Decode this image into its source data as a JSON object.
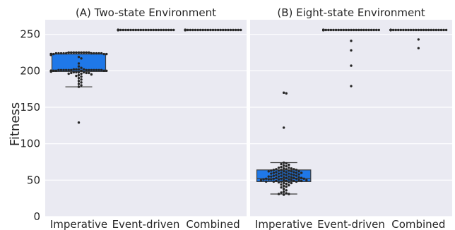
{
  "chart_data": [
    {
      "type": "box",
      "title": "(A) Two-state Environment",
      "ylabel": "Fitness",
      "categories": [
        "Imperative",
        "Event-driven",
        "Combined"
      ],
      "ylim": [
        0,
        270
      ],
      "yticks": [
        0,
        50,
        100,
        150,
        200,
        250
      ],
      "grid": true,
      "box_color": "#1f78e8",
      "point_color": "#262626",
      "boxes": [
        {
          "category": "Imperative",
          "whislo": 178,
          "q1": 199,
          "med": 201,
          "q3": 223,
          "whishi": 225,
          "fliers": [
            129
          ]
        },
        {
          "category": "Event-driven",
          "whislo": 256,
          "q1": 256,
          "med": 256,
          "q3": 256,
          "whishi": 256,
          "fliers": []
        },
        {
          "category": "Combined",
          "whislo": 256,
          "q1": 256,
          "med": 256,
          "q3": 256,
          "whishi": 256,
          "fliers": []
        }
      ],
      "swarm": [
        {
          "category": "Imperative",
          "values": [
            225,
            225,
            225,
            225,
            225,
            225,
            225,
            225,
            225,
            224,
            224,
            224,
            224,
            224,
            224,
            224,
            224,
            224,
            224,
            223,
            223,
            223,
            223,
            223,
            223,
            223,
            223,
            222,
            222,
            222,
            222,
            222,
            222,
            219,
            217,
            210,
            206,
            204,
            202,
            202,
            202,
            202,
            201,
            201,
            201,
            201,
            201,
            201,
            201,
            201,
            201,
            201,
            201,
            201,
            201,
            200,
            200,
            200,
            200,
            200,
            200,
            200,
            200,
            200,
            200,
            200,
            199,
            199,
            199,
            199,
            199,
            198,
            198,
            198,
            198,
            197,
            197,
            197,
            196,
            196,
            195,
            194,
            193,
            192,
            190,
            188,
            186,
            184,
            182,
            180,
            178,
            129
          ]
        },
        {
          "category": "Event-driven",
          "values": [
            256,
            256,
            256,
            256,
            256,
            256,
            256,
            256,
            256,
            256,
            256,
            256,
            256,
            256,
            256,
            256,
            256,
            256,
            256,
            256,
            256,
            256,
            256,
            256,
            256,
            256,
            256,
            256,
            256,
            256,
            256,
            256,
            256,
            256,
            256,
            256,
            256,
            256,
            256,
            256,
            256,
            256,
            256,
            256,
            256,
            256,
            256,
            256,
            256,
            256,
            256,
            256,
            256,
            256,
            256,
            256,
            256,
            256,
            256,
            256,
            256,
            256,
            256,
            256,
            256,
            256,
            256,
            256,
            256,
            256,
            256,
            256,
            256,
            256,
            256,
            256,
            256,
            256,
            256,
            256,
            256,
            256,
            256,
            256,
            256,
            256,
            256,
            256,
            256,
            256,
            256,
            256,
            256,
            256,
            256,
            256,
            256,
            256,
            256,
            256
          ]
        },
        {
          "category": "Combined",
          "values": [
            256,
            256,
            256,
            256,
            256,
            256,
            256,
            256,
            256,
            256,
            256,
            256,
            256,
            256,
            256,
            256,
            256,
            256,
            256,
            256,
            256,
            256,
            256,
            256,
            256,
            256,
            256,
            256,
            256,
            256,
            256,
            256,
            256,
            256,
            256,
            256,
            256,
            256,
            256,
            256,
            256,
            256,
            256,
            256,
            256,
            256,
            256,
            256,
            256,
            256,
            256,
            256,
            256,
            256,
            256,
            256,
            256,
            256,
            256,
            256,
            256,
            256,
            256,
            256,
            256,
            256,
            256,
            256,
            256,
            256,
            256,
            256,
            256,
            256,
            256,
            256,
            256,
            256,
            256,
            256,
            256,
            256,
            256,
            256,
            256,
            256,
            256,
            256,
            256,
            256,
            256,
            256,
            256,
            256,
            256,
            256,
            256,
            256,
            256,
            256
          ]
        }
      ]
    },
    {
      "type": "box",
      "title": "(B) Eight-state Environment",
      "ylabel": "",
      "categories": [
        "Imperative",
        "Event-driven",
        "Combined"
      ],
      "ylim": [
        0,
        270
      ],
      "yticks": [
        0,
        50,
        100,
        150,
        200,
        250
      ],
      "grid": true,
      "box_color": "#1f78e8",
      "point_color": "#262626",
      "boxes": [
        {
          "category": "Imperative",
          "whislo": 31,
          "q1": 48,
          "med": 52,
          "q3": 64,
          "whishi": 74,
          "fliers": [
            170,
            169,
            122
          ]
        },
        {
          "category": "Event-driven",
          "whislo": 256,
          "q1": 256,
          "med": 256,
          "q3": 256,
          "whishi": 256,
          "fliers": [
            241,
            228,
            207,
            179
          ]
        },
        {
          "category": "Combined",
          "whislo": 256,
          "q1": 256,
          "med": 256,
          "q3": 256,
          "whishi": 256,
          "fliers": [
            243,
            231
          ]
        }
      ],
      "swarm": [
        {
          "category": "Imperative",
          "values": [
            170,
            169,
            122,
            74,
            73,
            72,
            71,
            70,
            69,
            68,
            67,
            67,
            66,
            66,
            65,
            65,
            65,
            64,
            64,
            64,
            63,
            63,
            63,
            62,
            62,
            62,
            62,
            61,
            61,
            61,
            60,
            60,
            60,
            60,
            59,
            59,
            59,
            58,
            58,
            58,
            57,
            57,
            57,
            56,
            56,
            56,
            55,
            55,
            55,
            55,
            54,
            54,
            54,
            53,
            53,
            53,
            53,
            52,
            52,
            52,
            52,
            52,
            51,
            51,
            51,
            51,
            51,
            50,
            50,
            50,
            50,
            50,
            49,
            49,
            49,
            49,
            48,
            48,
            48,
            48,
            47,
            47,
            46,
            46,
            45,
            44,
            43,
            42,
            41,
            40,
            38,
            36,
            34,
            33,
            32,
            31,
            31,
            30
          ]
        },
        {
          "category": "Event-driven",
          "values": [
            256,
            256,
            256,
            256,
            256,
            256,
            256,
            256,
            256,
            256,
            256,
            256,
            256,
            256,
            256,
            256,
            256,
            256,
            256,
            256,
            256,
            256,
            256,
            256,
            256,
            256,
            256,
            256,
            256,
            256,
            256,
            256,
            256,
            256,
            256,
            256,
            256,
            256,
            256,
            256,
            256,
            256,
            256,
            256,
            256,
            256,
            256,
            256,
            256,
            256,
            256,
            256,
            256,
            256,
            256,
            256,
            256,
            256,
            256,
            256,
            256,
            256,
            256,
            256,
            256,
            256,
            256,
            256,
            256,
            256,
            256,
            256,
            256,
            256,
            256,
            256,
            256,
            256,
            256,
            256,
            256,
            256,
            256,
            256,
            256,
            256,
            256,
            256,
            256,
            256,
            256,
            256,
            256,
            256,
            256,
            256,
            241,
            228,
            207,
            179
          ]
        },
        {
          "category": "Combined",
          "values": [
            256,
            256,
            256,
            256,
            256,
            256,
            256,
            256,
            256,
            256,
            256,
            256,
            256,
            256,
            256,
            256,
            256,
            256,
            256,
            256,
            256,
            256,
            256,
            256,
            256,
            256,
            256,
            256,
            256,
            256,
            256,
            256,
            256,
            256,
            256,
            256,
            256,
            256,
            256,
            256,
            256,
            256,
            256,
            256,
            256,
            256,
            256,
            256,
            256,
            256,
            256,
            256,
            256,
            256,
            256,
            256,
            256,
            256,
            256,
            256,
            256,
            256,
            256,
            256,
            256,
            256,
            256,
            256,
            256,
            256,
            256,
            256,
            256,
            256,
            256,
            256,
            256,
            256,
            256,
            256,
            256,
            256,
            256,
            256,
            256,
            256,
            256,
            256,
            256,
            256,
            256,
            256,
            256,
            256,
            256,
            256,
            256,
            256,
            243,
            231
          ]
        }
      ]
    }
  ]
}
